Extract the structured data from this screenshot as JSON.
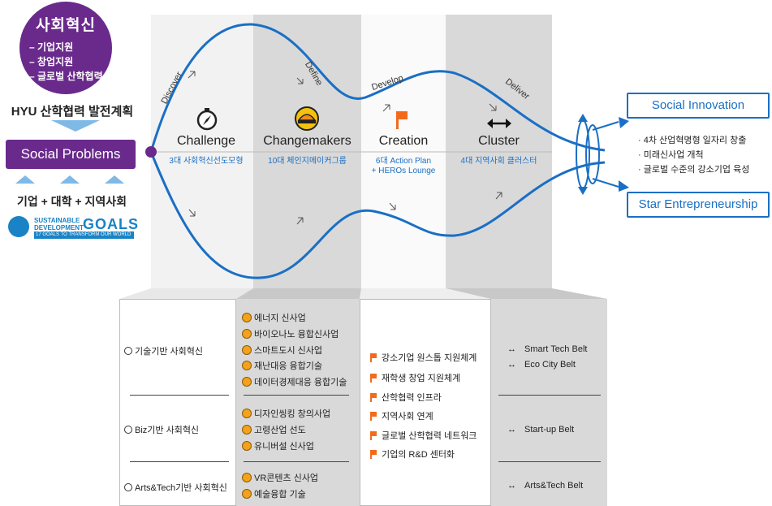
{
  "left": {
    "circle_title": "사회혁신",
    "circle_items": [
      "– 기업지원",
      "– 창업지원",
      "– 글로벌 산학협력"
    ],
    "plan": "HYU 산학협력 발전계획",
    "problems": "Social Problems",
    "stakeholders": "기업 + 대학 + 지역사회",
    "sdg_line1": "SUSTAINABLE",
    "sdg_line2": "DEVELOPMENT",
    "sdg_goals": "GOALS",
    "sdg_band": "17 GOALS TO TRANSFORM OUR WORLD"
  },
  "phases": [
    "Discover",
    "Define",
    "Develop",
    "Deliver"
  ],
  "stages": [
    {
      "icon": "compass-icon",
      "label": "Challenge",
      "sub": "3대 사회혁신선도모형"
    },
    {
      "icon": "hardhat-icon",
      "label": "Changemakers",
      "sub": "10대 체인지메이커그룹"
    },
    {
      "icon": "flag-icon",
      "label": "Creation",
      "sub_lines": [
        "6대 Action Plan",
        "+ HEROs Lounge"
      ]
    },
    {
      "icon": "double-arrow-icon",
      "label": "Cluster",
      "sub": "4대 지역사회 클러스터"
    }
  ],
  "outcomes": {
    "top": "Social Innovation",
    "bottom": "Star Entrepreneurship",
    "list": [
      "· 4차 산업혁명형 일자리 창출",
      "· 미래신사업 개척",
      "· 글로벌 수준의 강소기업 육성"
    ]
  },
  "table": {
    "col1": [
      "기술기반 사회혁신",
      "Biz기반 사회혁신",
      "Arts&Tech기반 사회혁신"
    ],
    "col2_group1": [
      "에너지 신사업",
      "바이오나노 융합신사업",
      "스마트도시 신사업",
      "재난대응 융합기술",
      "데이터경제대응 융합기술"
    ],
    "col2_group2": [
      "디자인씽킹 창의사업",
      "고령산업 선도",
      "유니버설 신사업"
    ],
    "col2_group3": [
      "VR콘텐츠 신사업",
      "예술융합 기술"
    ],
    "col3": [
      "강소기업 원스톱 지원체계",
      "재학생 창업 지원체계",
      "산학협력 인프라",
      "지역사회 연계",
      "글로벌 산학협력 네트워크",
      "기업의 R&D 센터화"
    ],
    "col4_group1": [
      "Smart Tech Belt",
      "Eco City Belt"
    ],
    "col4_group2": [
      "Start-up Belt"
    ],
    "col4_group3": [
      "Arts&Tech Belt"
    ]
  },
  "colors": {
    "purple": "#6a2a8c",
    "blue": "#1a6fc4",
    "light_blue": "#7fb9e6",
    "orange": "#f4a21b"
  }
}
